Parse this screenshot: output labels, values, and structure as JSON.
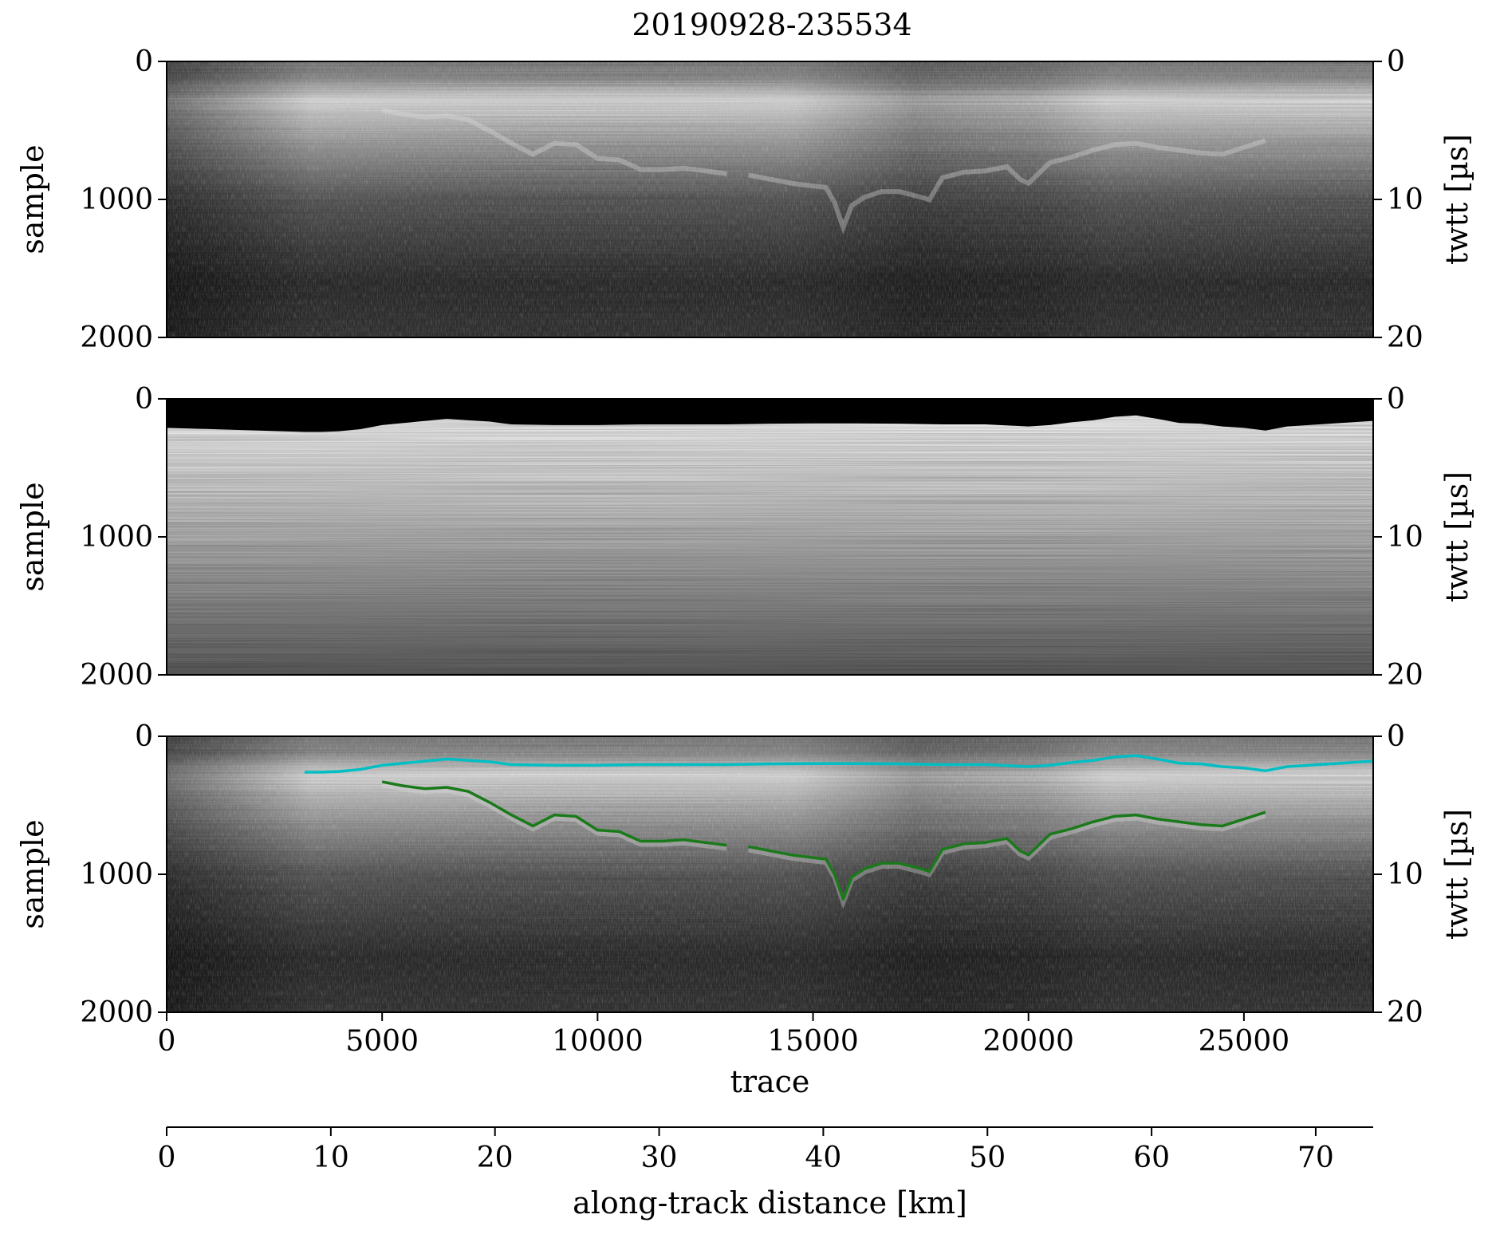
{
  "title": "20190928-235534",
  "colors": {
    "surface_pick": "#00BFC4",
    "bed_pick": "#1A7A1A",
    "frame": "#000000",
    "background": "#ffffff"
  },
  "chart_data": [
    {
      "type": "heatmap",
      "panel": "top",
      "description": "raw radargram (grayscale)",
      "xlim": [
        0,
        28000
      ],
      "ylim_left": [
        0,
        2000
      ],
      "ylim_right": [
        0,
        20
      ],
      "ylabel_left": "sample",
      "ylabel_right": "twtt [µs]",
      "yticks_left": [
        0,
        1000,
        2000
      ],
      "yticks_right": [
        0,
        10,
        20
      ]
    },
    {
      "type": "heatmap",
      "panel": "middle",
      "description": "processed radargram (grayscale)",
      "xlim": [
        0,
        28000
      ],
      "ylim_left": [
        0,
        2000
      ],
      "ylim_right": [
        0,
        20
      ],
      "ylabel_left": "sample",
      "ylabel_right": "twtt [µs]",
      "yticks_left": [
        0,
        1000,
        2000
      ],
      "yticks_right": [
        0,
        10,
        20
      ]
    },
    {
      "type": "line",
      "panel": "bottom",
      "description": "radargram with surface and bed picks",
      "xlim": [
        0,
        28000
      ],
      "ylim_left": [
        0,
        2000
      ],
      "ylim_right": [
        0,
        20
      ],
      "ylabel_left": "sample",
      "ylabel_right": "twtt [µs]",
      "yticks_left": [
        0,
        1000,
        2000
      ],
      "yticks_right": [
        0,
        10,
        20
      ],
      "xlabel": "trace",
      "xticks": [
        0,
        5000,
        10000,
        15000,
        20000,
        25000
      ],
      "secondary_xlabel": "along-track distance [km]",
      "secondary_xticks": [
        0,
        10,
        20,
        30,
        40,
        50,
        60,
        70
      ],
      "secondary_xlim_km": [
        0,
        73.5
      ],
      "series": [
        {
          "name": "surface",
          "color": "#00BFC4",
          "x": [
            3200,
            3600,
            4000,
            4500,
            5000,
            5500,
            6000,
            6500,
            7000,
            7500,
            8000,
            9000,
            10000,
            11000,
            12000,
            13000,
            14000,
            15000,
            16000,
            17000,
            18000,
            19000,
            20000,
            20500,
            21000,
            21500,
            22000,
            22500,
            23000,
            23500,
            24000,
            24500,
            25000,
            25500,
            26000,
            26500,
            27000,
            27500,
            28000
          ],
          "y": [
            260,
            260,
            255,
            240,
            210,
            195,
            180,
            165,
            175,
            185,
            205,
            210,
            210,
            205,
            205,
            205,
            200,
            198,
            198,
            200,
            205,
            205,
            220,
            210,
            190,
            175,
            150,
            140,
            165,
            195,
            200,
            220,
            230,
            250,
            220,
            210,
            200,
            190,
            180
          ]
        },
        {
          "name": "bed",
          "color": "#1A7A1A",
          "x": [
            5000,
            5500,
            6000,
            6500,
            7000,
            7500,
            8000,
            8500,
            9000,
            9500,
            10000,
            10500,
            11000,
            11500,
            12000,
            12500,
            13000
          ],
          "y": [
            330,
            360,
            380,
            370,
            400,
            480,
            570,
            650,
            570,
            580,
            680,
            690,
            760,
            760,
            750,
            770,
            790
          ]
        },
        {
          "name": "bed",
          "color": "#1A7A1A",
          "x": [
            13500,
            14000,
            14500,
            15000,
            15300,
            15500,
            15700,
            15900,
            16200,
            16600,
            17000,
            17500,
            17700,
            18000,
            18500,
            19000,
            19500,
            19800,
            20000,
            20500,
            21000,
            21500,
            22000,
            22500,
            23000,
            23500,
            24000,
            24500,
            25000,
            25500
          ],
          "y": [
            800,
            830,
            860,
            880,
            890,
            1000,
            1180,
            1020,
            960,
            920,
            920,
            960,
            980,
            820,
            780,
            770,
            740,
            830,
            860,
            710,
            670,
            620,
            580,
            570,
            600,
            620,
            640,
            650,
            600,
            550
          ]
        }
      ]
    }
  ]
}
